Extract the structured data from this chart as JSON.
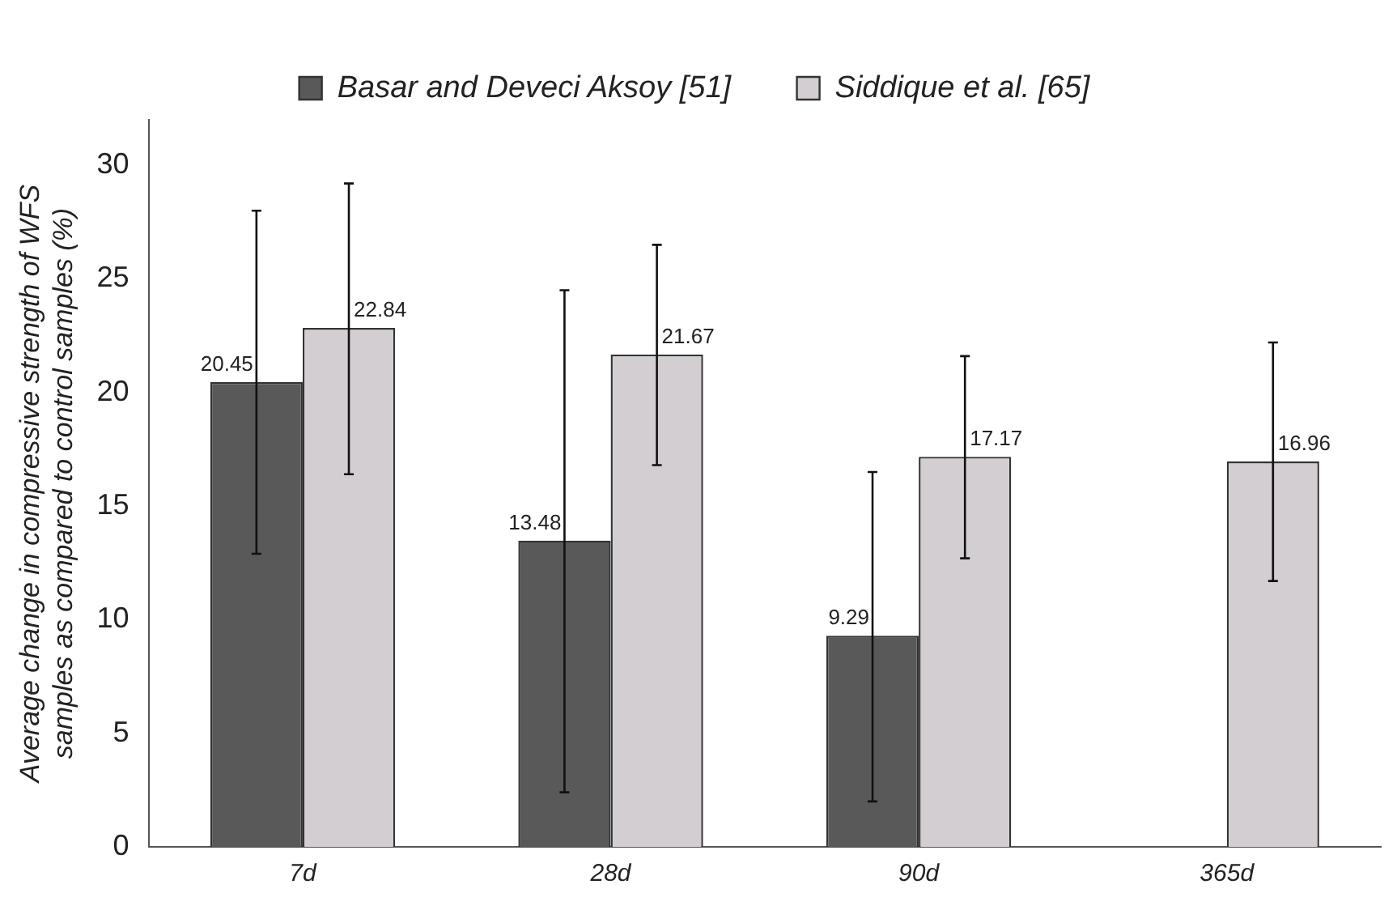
{
  "chart_data": {
    "type": "bar",
    "ylabel": "Average change in compressive strength of WFS samples as compared to control samples (%)",
    "categories": [
      "7d",
      "28d",
      "90d",
      "365d"
    ],
    "series": [
      {
        "name": "Basar and Deveci Aksoy [51]",
        "color": "#595959",
        "values": [
          20.45,
          13.48,
          9.29,
          null
        ],
        "errors": [
          [
            12.9,
            28.0
          ],
          [
            2.4,
            24.5
          ],
          [
            2.0,
            16.5
          ],
          null
        ]
      },
      {
        "name": "Siddique et al. [65]",
        "color": "#d3ced2",
        "values": [
          22.84,
          21.67,
          17.17,
          16.96
        ],
        "errors": [
          [
            16.4,
            29.2
          ],
          [
            16.8,
            26.5
          ],
          [
            12.7,
            21.6
          ],
          [
            11.7,
            22.2
          ]
        ]
      }
    ],
    "ylim": [
      0,
      32
    ],
    "yticks": [
      0,
      5,
      10,
      15,
      20,
      25,
      30
    ],
    "grid": false,
    "legend": "top",
    "data_labels": true
  }
}
